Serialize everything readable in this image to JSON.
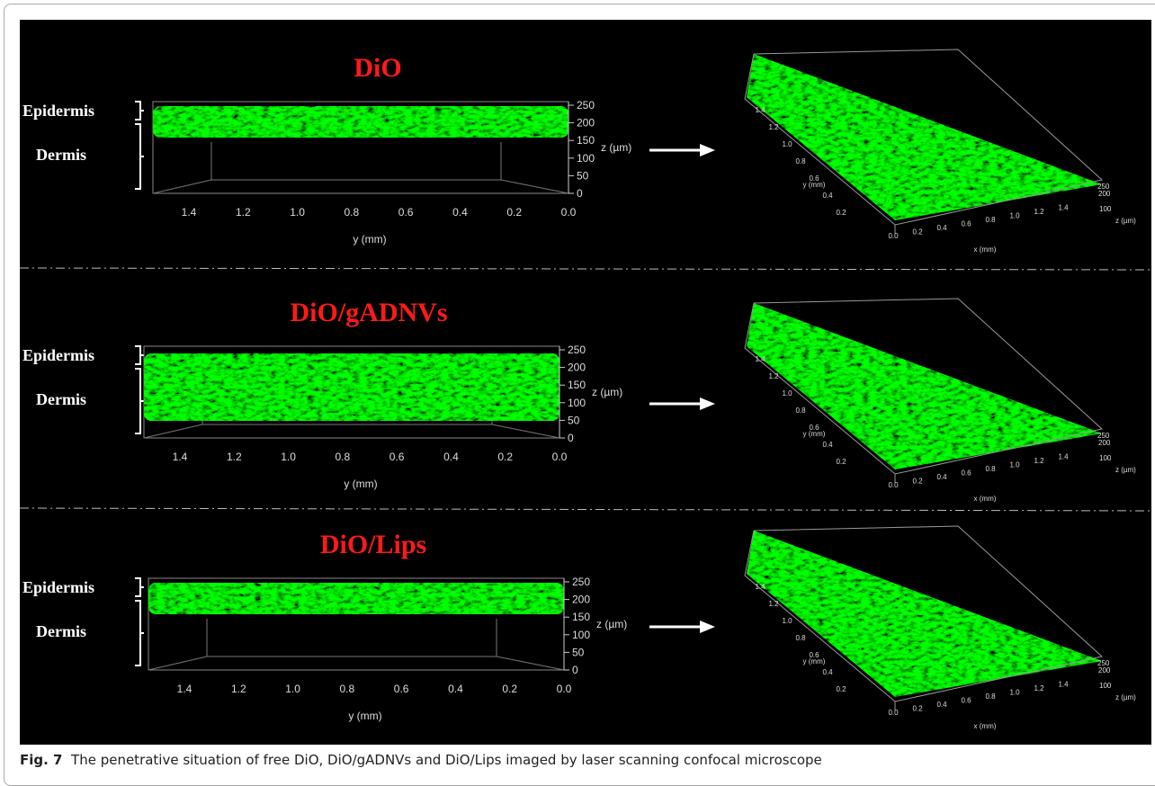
{
  "panels": [
    {
      "title": "DiO",
      "layer_labels": [
        "Epidermis",
        "Dermis"
      ],
      "side_view": {
        "y_ticks": [
          "1.4",
          "1.2",
          "1.0",
          "0.8",
          "0.6",
          "0.4",
          "0.2",
          "0.0"
        ],
        "z_ticks": [
          "250",
          "200",
          "150",
          "100",
          "50",
          "0"
        ],
        "z_label": "z (µm)",
        "y_label": "y (mm)"
      },
      "view_3d": {
        "y_ticks": [
          "1.4",
          "1.2",
          "1.0",
          "0.8",
          "0.6",
          "0.4",
          "0.2"
        ],
        "x_ticks": [
          "0.0",
          "0.2",
          "0.4",
          "0.6",
          "0.8",
          "1.0",
          "1.2",
          "1.4"
        ],
        "z_ticks": [
          "250",
          "200",
          "100"
        ],
        "y_label": "y (mm)",
        "x_label": "x (mm)",
        "z_label": "z (µm)"
      }
    },
    {
      "title": "DiO/gADNVs",
      "layer_labels": [
        "Epidermis",
        "Dermis"
      ],
      "side_view": {
        "y_ticks": [
          "1.4",
          "1.2",
          "1.0",
          "0.8",
          "0.6",
          "0.4",
          "0.2",
          "0.0"
        ],
        "z_ticks": [
          "250",
          "200",
          "150",
          "100",
          "50",
          "0"
        ],
        "z_label": "z (µm)",
        "y_label": "y (mm)"
      },
      "view_3d": {
        "y_ticks": [
          "1.4",
          "1.2",
          "1.0",
          "0.8",
          "0.6",
          "0.4",
          "0.2"
        ],
        "x_ticks": [
          "0.0",
          "0.2",
          "0.4",
          "0.6",
          "0.8",
          "1.0",
          "1.2",
          "1.4"
        ],
        "z_ticks": [
          "250",
          "200",
          "100"
        ],
        "y_label": "y (mm)",
        "x_label": "x (mm)",
        "z_label": "z (µm)"
      }
    },
    {
      "title": "DiO/Lips",
      "layer_labels": [
        "Epidermis",
        "Dermis"
      ],
      "side_view": {
        "y_ticks": [
          "1.4",
          "1.2",
          "1.0",
          "0.8",
          "0.6",
          "0.4",
          "0.2",
          "0.0"
        ],
        "z_ticks": [
          "250",
          "200",
          "150",
          "100",
          "50",
          "0"
        ],
        "z_label": "z (µm)",
        "y_label": "y (mm)"
      },
      "view_3d": {
        "y_ticks": [
          "1.4",
          "1.2",
          "1.0",
          "0.8",
          "0.6",
          "0.4",
          "0.2"
        ],
        "x_ticks": [
          "0.0",
          "0.2",
          "0.4",
          "0.6",
          "0.8",
          "1.0",
          "1.2",
          "1.4"
        ],
        "z_ticks": [
          "250",
          "200",
          "100"
        ],
        "y_label": "y (mm)",
        "x_label": "x (mm)",
        "z_label": "z (µm)"
      }
    }
  ],
  "caption": {
    "label": "Fig. 7",
    "text": "The penetrative situation of free DiO, DiO/gADNVs and DiO/Lips imaged by laser scanning confocal microscope"
  }
}
